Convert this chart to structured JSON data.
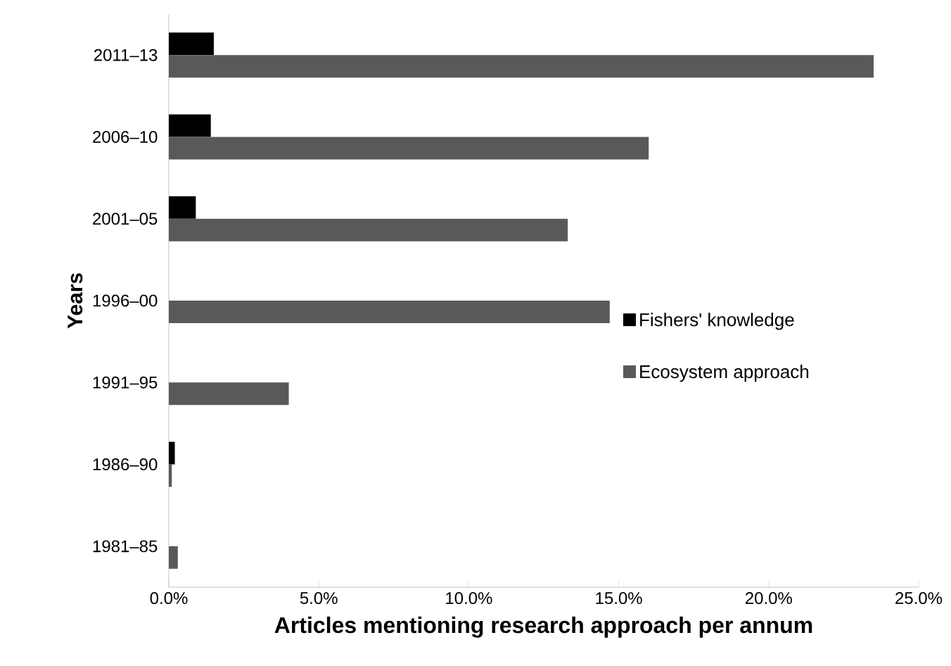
{
  "chart_data": {
    "type": "bar",
    "orientation": "horizontal",
    "xlabel": "Articles mentioning research approach per annum",
    "ylabel": "Years",
    "categories": [
      "2011–13",
      "2006–10",
      "2001–05",
      "1996–00",
      "1991–95",
      "1986–90",
      "1981–85"
    ],
    "series": [
      {
        "name": "Fishers' knowledge",
        "color": "#000000",
        "values": [
          1.5,
          1.4,
          0.9,
          0,
          0,
          0.2,
          0
        ]
      },
      {
        "name": "Ecosystem approach",
        "color": "#595959",
        "values": [
          23.5,
          16.0,
          13.3,
          14.7,
          4.0,
          0.1,
          0.3
        ]
      }
    ],
    "xlim": [
      0,
      25
    ],
    "xticks": [
      {
        "value": 0,
        "label": "0.0%"
      },
      {
        "value": 5,
        "label": "5.0%"
      },
      {
        "value": 10,
        "label": "10.0%"
      },
      {
        "value": 15,
        "label": "15.0%"
      },
      {
        "value": 20,
        "label": "20.0%"
      },
      {
        "value": 25,
        "label": "25.0%"
      }
    ],
    "legend": "right"
  }
}
